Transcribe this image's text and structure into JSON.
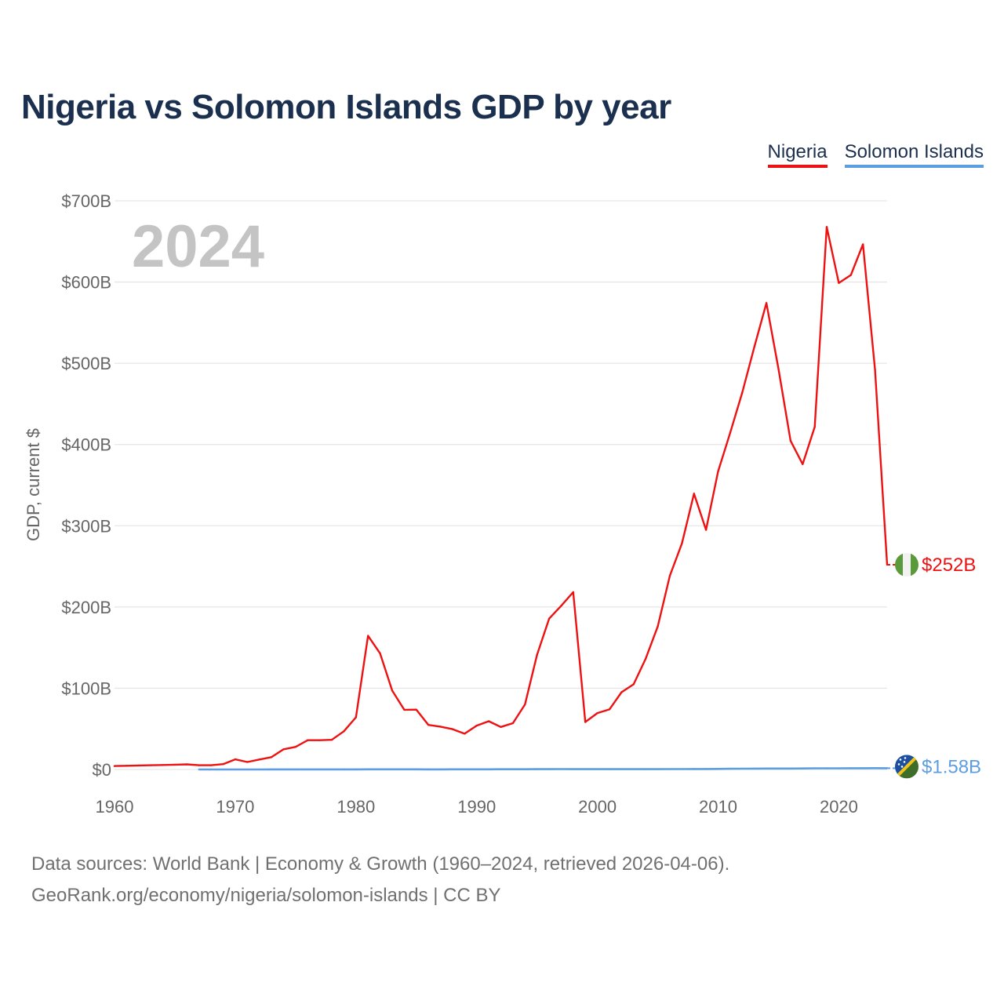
{
  "title": "Nigeria vs Solomon Islands GDP by year",
  "legend": {
    "nigeria": "Nigeria",
    "solomon": "Solomon Islands"
  },
  "source": {
    "line1": "Data sources: World Bank | Economy & Growth (1960–2024, retrieved 2026-04-06).",
    "line2": "GeoRank.org/economy/nigeria/solomon-islands | CC BY"
  },
  "colors": {
    "nigeria": "#ee1111",
    "solomon": "#5d9ee0",
    "title": "#1b2f4e"
  },
  "icons": {
    "nigeria": "nigeria-flag-icon",
    "solomon": "solomon-islands-flag-icon"
  },
  "chart_data": {
    "type": "line",
    "title": "Nigeria vs Solomon Islands GDP by year",
    "xlabel": "",
    "ylabel": "GDP, current $",
    "year_label": "2024",
    "xlim": [
      1960,
      2024
    ],
    "ylim": [
      0,
      700
    ],
    "y_unit": "billions USD",
    "x_ticks": [
      1960,
      1970,
      1980,
      1990,
      2000,
      2010,
      2020
    ],
    "x_tick_labels": [
      "1960",
      "1970",
      "1980",
      "1990",
      "2000",
      "2010",
      "2020"
    ],
    "y_ticks": [
      0,
      100,
      200,
      300,
      400,
      500,
      600,
      700
    ],
    "y_tick_labels": [
      "$0",
      "$100B",
      "$200B",
      "$300B",
      "$400B",
      "$500B",
      "$600B",
      "$700B"
    ],
    "grid": true,
    "legend_position": "top-right",
    "series": [
      {
        "name": "Nigeria",
        "end_label": "$252B",
        "x": [
          1960,
          1961,
          1962,
          1963,
          1964,
          1965,
          1966,
          1967,
          1968,
          1969,
          1970,
          1971,
          1972,
          1973,
          1974,
          1975,
          1976,
          1977,
          1978,
          1979,
          1980,
          1981,
          1982,
          1983,
          1984,
          1985,
          1986,
          1987,
          1988,
          1989,
          1990,
          1991,
          1992,
          1993,
          1994,
          1995,
          1996,
          1997,
          1998,
          1999,
          2000,
          2001,
          2002,
          2003,
          2004,
          2005,
          2006,
          2007,
          2008,
          2009,
          2010,
          2011,
          2012,
          2013,
          2014,
          2015,
          2016,
          2017,
          2018,
          2019,
          2020,
          2021,
          2022,
          2023,
          2024
        ],
        "values": [
          4.2,
          4.5,
          4.9,
          5.2,
          5.5,
          5.9,
          6.3,
          5.2,
          5.2,
          6.6,
          12.5,
          9.2,
          12.3,
          15.2,
          24.8,
          27.8,
          36.0,
          36.0,
          36.5,
          47.0,
          64.2,
          164.5,
          142.8,
          97.1,
          73.5,
          73.7,
          54.8,
          52.7,
          49.6,
          44.0,
          54.0,
          59.4,
          52.3,
          57.0,
          80.0,
          141.3,
          185.7,
          201.5,
          218.3,
          58.4,
          69.4,
          74.0,
          95.1,
          104.9,
          136.4,
          176.1,
          238.5,
          278.3,
          339.5,
          295.0,
          366.9,
          414.4,
          463.9,
          520.1,
          574.2,
          493.0,
          404.6,
          375.8,
          421.7,
          667.8,
          598.9,
          608.7,
          646.4,
          491.6,
          252.0
        ]
      },
      {
        "name": "Solomon Islands",
        "end_label": "$1.58B",
        "x": [
          1967,
          1968,
          1969,
          1970,
          1971,
          1972,
          1973,
          1974,
          1975,
          1976,
          1977,
          1978,
          1979,
          1980,
          1981,
          1982,
          1983,
          1984,
          1985,
          1986,
          1987,
          1988,
          1989,
          1990,
          1991,
          1992,
          1993,
          1994,
          1995,
          1996,
          1997,
          1998,
          1999,
          2000,
          2001,
          2002,
          2003,
          2004,
          2005,
          2006,
          2007,
          2008,
          2009,
          2010,
          2011,
          2012,
          2013,
          2014,
          2015,
          2016,
          2017,
          2018,
          2019,
          2020,
          2021,
          2022,
          2023,
          2024
        ],
        "values": [
          0.03,
          0.03,
          0.03,
          0.03,
          0.03,
          0.04,
          0.05,
          0.07,
          0.06,
          0.07,
          0.08,
          0.1,
          0.13,
          0.14,
          0.16,
          0.16,
          0.15,
          0.2,
          0.17,
          0.14,
          0.14,
          0.17,
          0.18,
          0.19,
          0.22,
          0.25,
          0.29,
          0.33,
          0.38,
          0.42,
          0.44,
          0.41,
          0.41,
          0.43,
          0.41,
          0.34,
          0.34,
          0.38,
          0.42,
          0.46,
          0.52,
          0.6,
          0.6,
          0.68,
          0.88,
          1.0,
          1.1,
          1.16,
          1.14,
          1.19,
          1.3,
          1.43,
          1.45,
          1.41,
          1.53,
          1.55,
          1.63,
          1.58
        ]
      }
    ]
  }
}
